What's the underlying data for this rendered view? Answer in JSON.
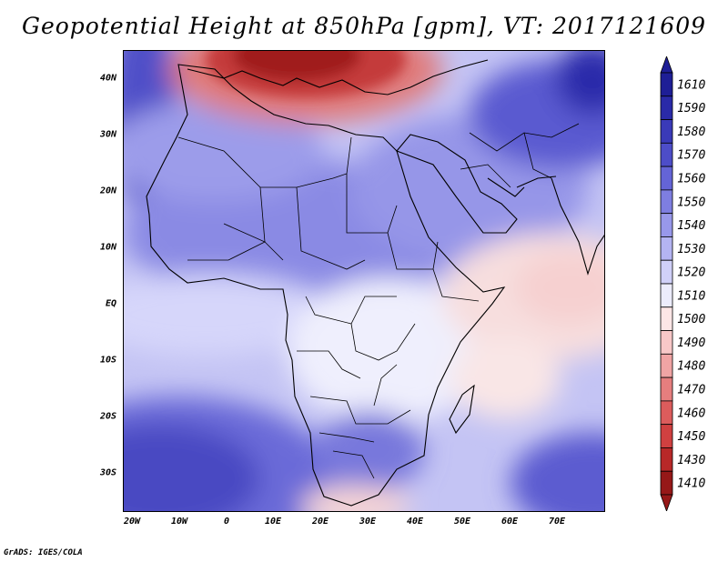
{
  "title": "Geopotential Height at 850hPa [gpm], VT: 2017121609",
  "credit": "GrADS: IGES/COLA",
  "map": {
    "region": "Africa and Middle East",
    "lon_range": [
      -23,
      80
    ],
    "lat_range": [
      -37,
      46
    ],
    "lat_ticks": [
      {
        "value": 40,
        "label": "40N"
      },
      {
        "value": 30,
        "label": "30N"
      },
      {
        "value": 20,
        "label": "20N"
      },
      {
        "value": 10,
        "label": "10N"
      },
      {
        "value": 0,
        "label": "EQ"
      },
      {
        "value": -10,
        "label": "10S"
      },
      {
        "value": -20,
        "label": "20S"
      },
      {
        "value": -30,
        "label": "30S"
      }
    ],
    "lon_ticks": [
      {
        "value": -20,
        "label": "20W"
      },
      {
        "value": -10,
        "label": "10W"
      },
      {
        "value": 0,
        "label": "0"
      },
      {
        "value": 10,
        "label": "10E"
      },
      {
        "value": 20,
        "label": "20E"
      },
      {
        "value": 30,
        "label": "30E"
      },
      {
        "value": 40,
        "label": "40E"
      },
      {
        "value": 50,
        "label": "50E"
      },
      {
        "value": 60,
        "label": "60E"
      },
      {
        "value": 70,
        "label": "70E"
      }
    ]
  },
  "colorbar": {
    "levels": [
      {
        "label": "1610",
        "color": "#1e1e96"
      },
      {
        "label": "1590",
        "color": "#2a2aa8"
      },
      {
        "label": "1580",
        "color": "#3a3ab8"
      },
      {
        "label": "1570",
        "color": "#4d4dc8"
      },
      {
        "label": "1560",
        "color": "#6464d6"
      },
      {
        "label": "1550",
        "color": "#7e7ee0"
      },
      {
        "label": "1540",
        "color": "#9898ea"
      },
      {
        "label": "1530",
        "color": "#b4b4f2"
      },
      {
        "label": "1520",
        "color": "#d0d0f8"
      },
      {
        "label": "1510",
        "color": "#ececfc"
      },
      {
        "label": "1500",
        "color": "#fde6e6"
      },
      {
        "label": "1490",
        "color": "#f8c8c8"
      },
      {
        "label": "1480",
        "color": "#f0a4a4"
      },
      {
        "label": "1470",
        "color": "#e67e7e"
      },
      {
        "label": "1460",
        "color": "#dc5c5c"
      },
      {
        "label": "1450",
        "color": "#d04040"
      },
      {
        "label": "1430",
        "color": "#b82828"
      },
      {
        "label": "1410",
        "color": "#961818"
      }
    ]
  }
}
